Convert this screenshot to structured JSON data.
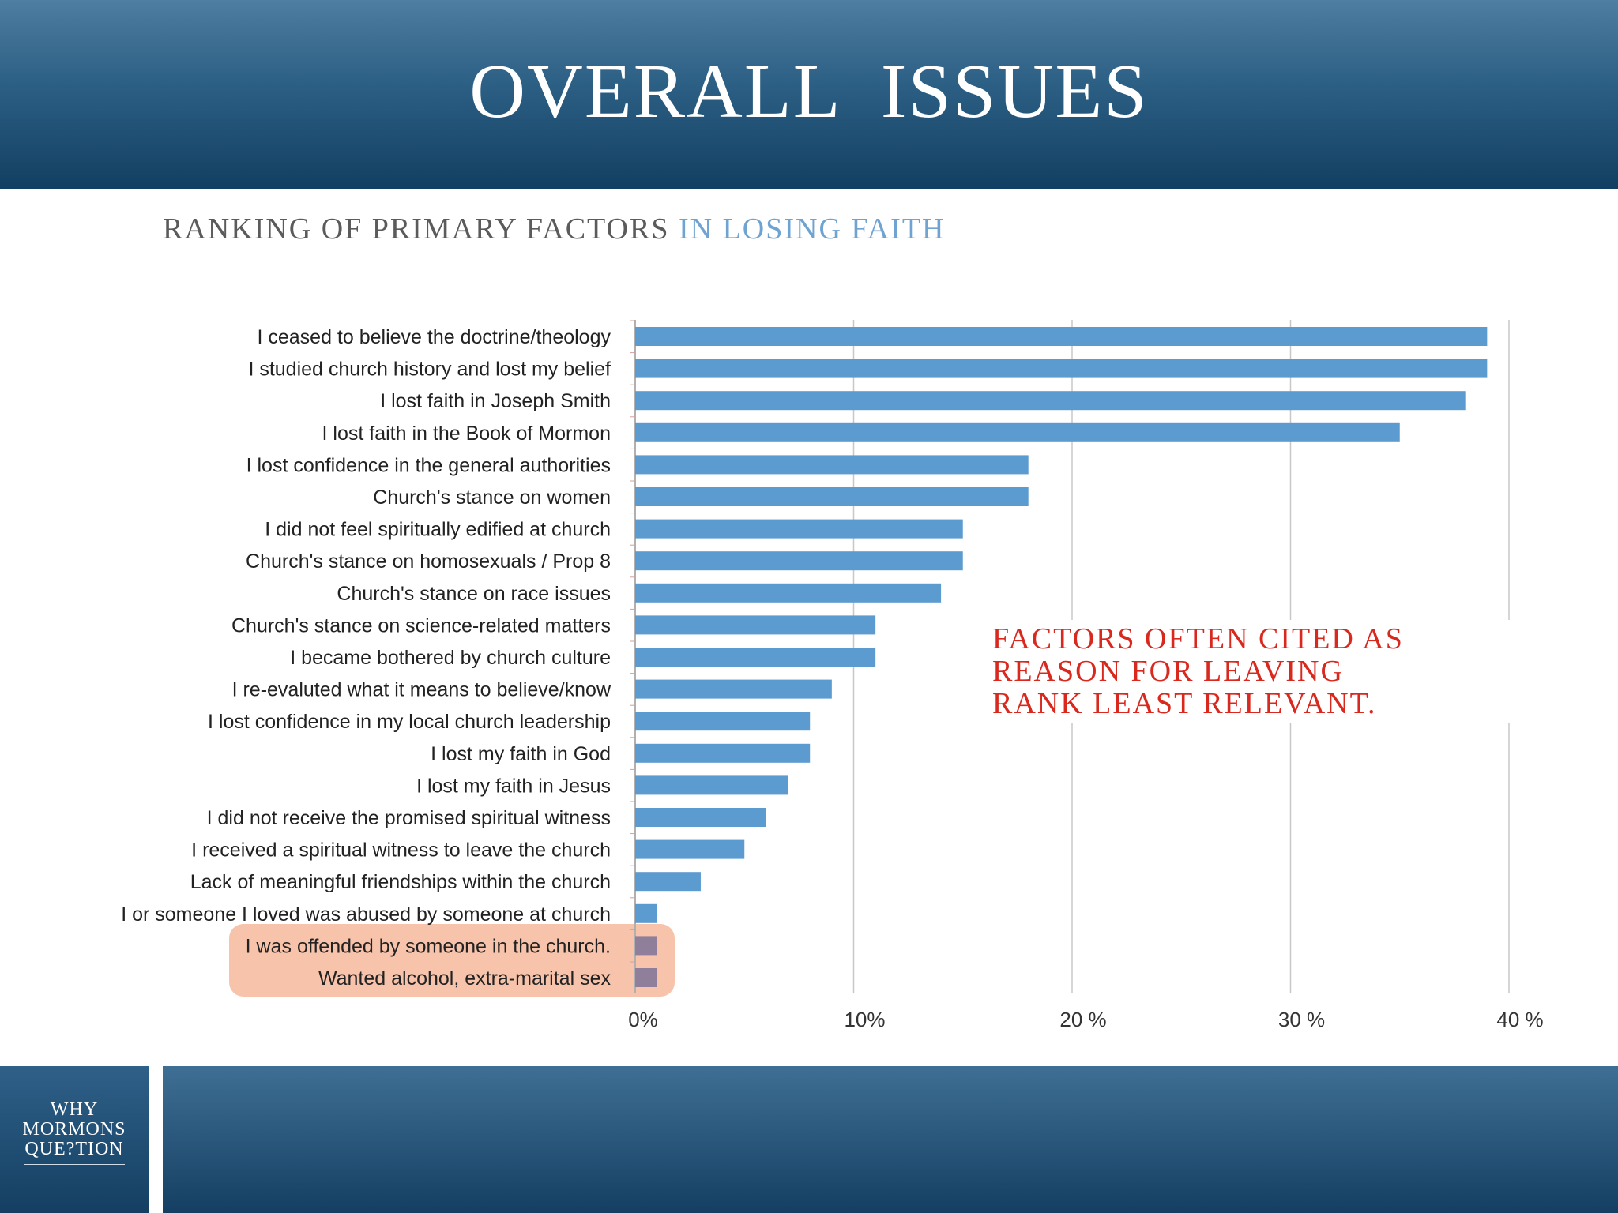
{
  "title": "OVERALL  ISSUES",
  "subtitle": {
    "part1": "RANKING OF PRIMARY FACTORS",
    "part2": "IN LOSING FAITH"
  },
  "annotation": {
    "lines": [
      "FACTORS OFTEN CITED AS",
      "REASON FOR LEAVING",
      "RANK LEAST RELEVANT."
    ],
    "color": "#d9281e"
  },
  "logo": {
    "lines": [
      "WHY",
      "MORMONS",
      "QUE?TION"
    ]
  },
  "chart_data": {
    "type": "bar",
    "orientation": "horizontal",
    "bar_color": "#5b9bd0",
    "highlight_color": "#f8c3ab",
    "categories": [
      "I ceased to believe the doctrine/theology",
      "I studied church history and lost my belief",
      "I lost faith in Joseph Smith",
      "I lost faith in the Book of Mormon",
      "I lost confidence in the general authorities",
      "Church's stance on women",
      "I did not feel spiritually edified at church",
      "Church's stance on homosexuals / Prop 8",
      "Church's stance on race issues",
      "Church's stance on science-related matters",
      "I became bothered by church culture",
      "I re-evaluted what it means to believe/know",
      "I lost confidence in my local church leadership",
      "I lost my faith in God",
      "I lost my faith in Jesus",
      "I did not receive the promised spiritual witness",
      "I received a spiritual witness to leave the church",
      "Lack of meaningful friendships within the church",
      "I or someone I loved was abused by someone at church",
      "I was offended by someone in the church.",
      "Wanted alcohol, extra-marital sex"
    ],
    "values": [
      39,
      39,
      38,
      35,
      18,
      18,
      15,
      15,
      14,
      11,
      11,
      9,
      8,
      8,
      7,
      6,
      5,
      3,
      1,
      1,
      1
    ],
    "highlighted": [
      false,
      false,
      false,
      false,
      false,
      false,
      false,
      false,
      false,
      false,
      false,
      false,
      false,
      false,
      false,
      false,
      false,
      false,
      false,
      true,
      true
    ],
    "xlim": [
      0,
      40
    ],
    "xticks": [
      "0%",
      "10%",
      "20 %",
      "30 %",
      "40 %"
    ],
    "grid": true
  }
}
